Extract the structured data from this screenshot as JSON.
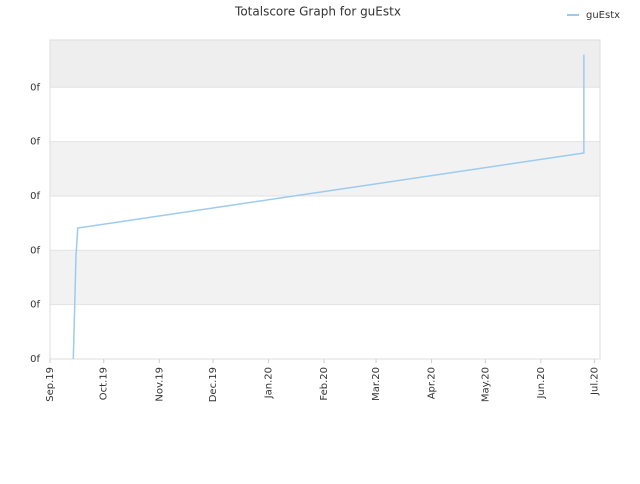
{
  "chart_data": {
    "type": "line",
    "title": "Totalscore Graph for guEstx",
    "x": [
      13,
      13.5,
      14.5,
      15.5,
      298,
      298
    ],
    "series": [
      {
        "name": "guEstx",
        "color": "#9ccbef",
        "values": [
          0,
          0.6,
          1.9,
          2.41,
          3.79,
          5.6
        ]
      }
    ],
    "xlim": [
      0,
      307
    ],
    "xticks": [
      {
        "value": 0,
        "label": "Sep.19"
      },
      {
        "value": 30,
        "label": "Oct.19"
      },
      {
        "value": 61,
        "label": "Nov.19"
      },
      {
        "value": 91,
        "label": "Dec.19"
      },
      {
        "value": 122,
        "label": "Jan.20"
      },
      {
        "value": 153,
        "label": "Feb.20"
      },
      {
        "value": 182,
        "label": "Mar.20"
      },
      {
        "value": 213,
        "label": "Apr.20"
      },
      {
        "value": 243,
        "label": "May.20"
      },
      {
        "value": 274,
        "label": "Jun.20"
      },
      {
        "value": 304,
        "label": "Jul.20"
      }
    ],
    "ylim": [
      0,
      5.87
    ],
    "yticks": [
      {
        "value": 0,
        "label": "0f"
      },
      {
        "value": 1,
        "label": "0f"
      },
      {
        "value": 2,
        "label": "0f"
      },
      {
        "value": 3,
        "label": "0f"
      },
      {
        "value": 4,
        "label": "0f"
      },
      {
        "value": 5,
        "label": "0f"
      }
    ],
    "grid": true,
    "legend": "top-right"
  }
}
